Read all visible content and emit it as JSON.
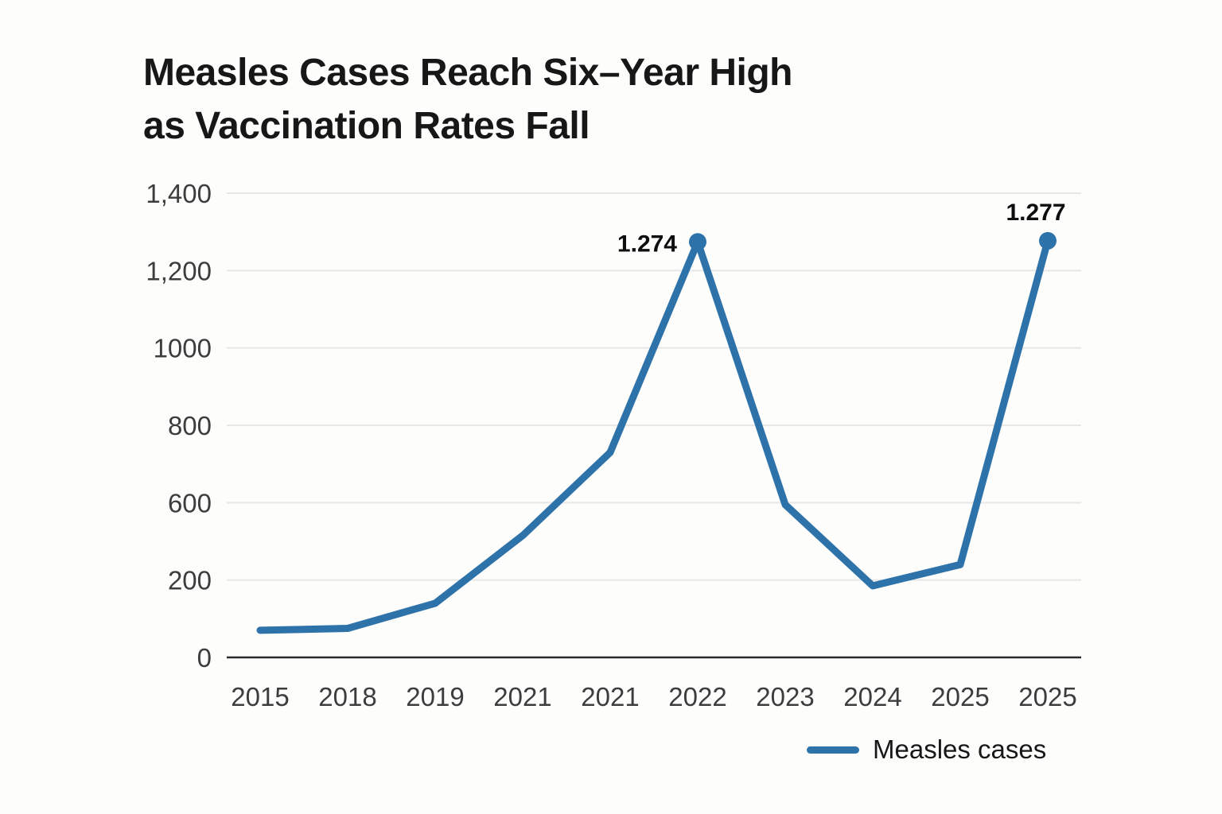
{
  "title": {
    "line1": "Measles Cases Reach Six–Year High",
    "line2": "as Vaccination Rates Fall"
  },
  "legend": {
    "label": "Measles cases"
  },
  "colors": {
    "line": "#2e72aa",
    "grid": "#e7e7e7",
    "axis": "#2b2b2b",
    "title_text": "#171717",
    "tick_text": "#3d3d3d",
    "point_label_text": "#0e0e0e",
    "background": "#fdfdfc"
  },
  "chart_data": {
    "type": "line",
    "title": "Measles Cases Reach Six–Year High as Vaccination Rates Fall",
    "categories": [
      "2015",
      "2018",
      "2019",
      "2021",
      "2021",
      "2022",
      "2023",
      "2024",
      "2025",
      "2025"
    ],
    "series": [
      {
        "name": "Measles cases",
        "values": [
          70,
          75,
          140,
          430,
          730,
          1274,
          590,
          185,
          280,
          1277
        ]
      }
    ],
    "y_axis": {
      "tick_values": [
        0,
        200,
        600,
        800,
        1000,
        1200,
        1400
      ],
      "tick_labels": [
        "0",
        "200",
        "600",
        "800",
        "1000",
        "1,200",
        "1,400"
      ],
      "range": [
        0,
        1400
      ]
    },
    "point_labels": [
      {
        "index": 5,
        "text": "1.274",
        "position": "left-of-point"
      },
      {
        "index": 9,
        "text": "1.277",
        "position": "above-point"
      }
    ],
    "markers_at_indices": [
      5,
      9
    ],
    "grid": true,
    "legend_position": "bottom-right",
    "legend_entries": [
      "Measles cases"
    ]
  }
}
